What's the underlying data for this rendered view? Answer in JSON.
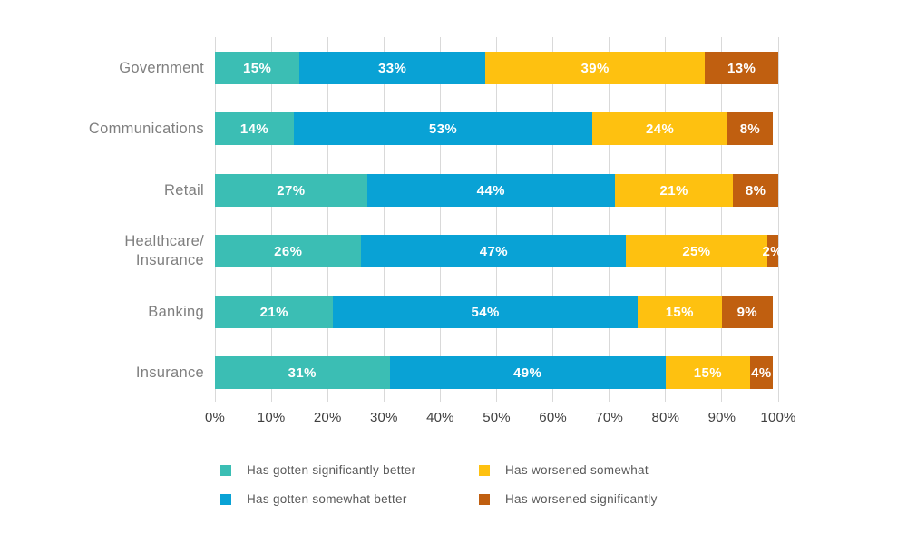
{
  "chart_data": {
    "type": "bar",
    "orientation": "horizontal",
    "stacked": true,
    "title": "",
    "xlabel": "",
    "ylabel": "",
    "xlim": [
      0,
      100
    ],
    "grid": "vertical",
    "gridline_color": "#d9d9d9",
    "value_suffix": "%",
    "legend_position": "bottom",
    "categories": [
      "Government",
      "Communications",
      "Retail",
      "Healthcare/\nInsurance",
      "Banking",
      "Insurance"
    ],
    "series": [
      {
        "name": "Has gotten significantly better",
        "color": "#3bbeb4",
        "values": [
          15,
          14,
          27,
          26,
          21,
          31
        ]
      },
      {
        "name": "Has gotten somewhat better",
        "color": "#09a2d5",
        "values": [
          33,
          53,
          44,
          47,
          54,
          49
        ]
      },
      {
        "name": "Has worsened somewhat",
        "color": "#fec110",
        "values": [
          39,
          24,
          21,
          25,
          15,
          15
        ]
      },
      {
        "name": "Has worsened significantly",
        "color": "#c05f10",
        "values": [
          13,
          8,
          8,
          2,
          9,
          4
        ]
      }
    ],
    "x_ticks": [
      "0%",
      "10%",
      "20%",
      "30%",
      "40%",
      "50%",
      "60%",
      "70%",
      "80%",
      "90%",
      "100%"
    ]
  },
  "text_colors": {
    "category_label": "#7f7f7f",
    "axis_tick": "#3f3f3f",
    "legend_label": "#595959",
    "bar_value": "#ffffff"
  }
}
